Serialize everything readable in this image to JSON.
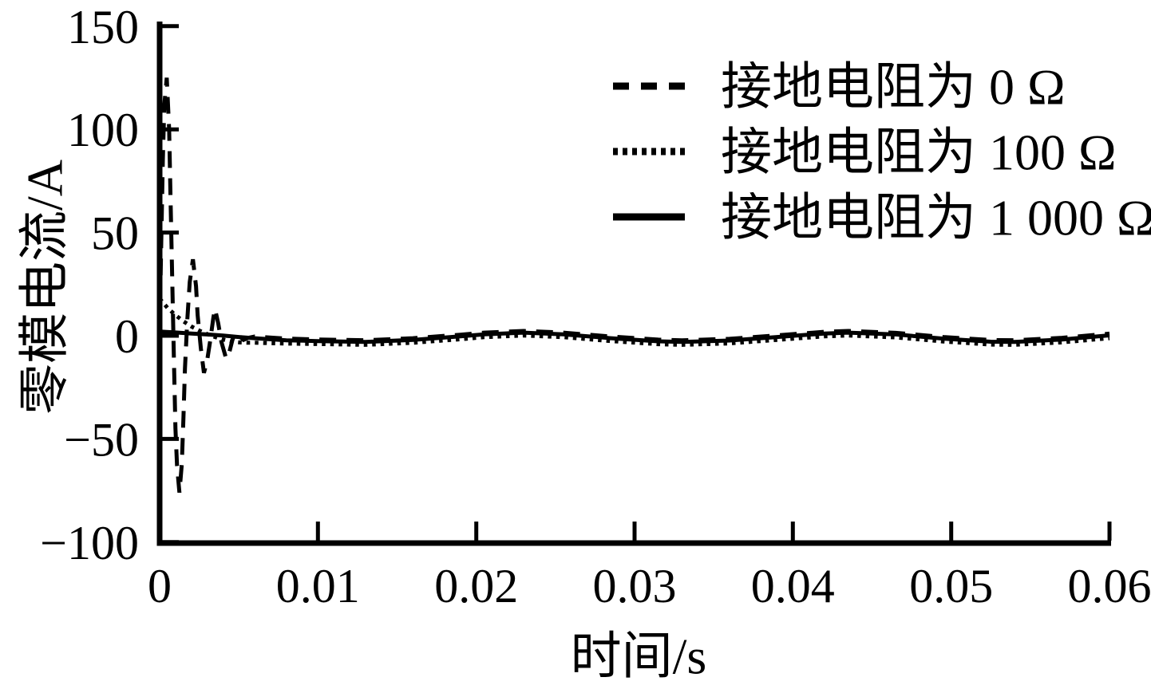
{
  "figure": {
    "background": "#ffffff",
    "ink": "#000000"
  },
  "chart_data": {
    "type": "line",
    "title": "",
    "xlabel": "时间/s",
    "ylabel": "零模电流/A",
    "xlim": [
      0,
      0.06
    ],
    "ylim": [
      -100,
      150
    ],
    "grid": false,
    "legend_position": "upper right",
    "xticks": [
      0,
      0.01,
      0.02,
      0.03,
      0.04,
      0.05,
      0.06
    ],
    "xtick_labels": [
      "0",
      "0.01",
      "0.02",
      "0.03",
      "0.04",
      "0.05",
      "0.06"
    ],
    "yticks": [
      150,
      100,
      50,
      0,
      -50,
      -100
    ],
    "ytick_labels": [
      "150",
      "100",
      "50",
      "0",
      "−50",
      "−100"
    ],
    "series": [
      {
        "name": "接地电阻为 0 Ω",
        "style": "dashed",
        "points": [
          [
            0.0,
            3
          ],
          [
            0.0001,
            45
          ],
          [
            0.0002,
            85
          ],
          [
            0.0003,
            112
          ],
          [
            0.00045,
            125
          ],
          [
            0.0006,
            100
          ],
          [
            0.0007,
            62
          ],
          [
            0.0008,
            25
          ],
          [
            0.0009,
            -10
          ],
          [
            0.001,
            -45
          ],
          [
            0.0011,
            -63
          ],
          [
            0.00125,
            -76
          ],
          [
            0.0014,
            -62
          ],
          [
            0.0015,
            -40
          ],
          [
            0.0016,
            -16
          ],
          [
            0.00175,
            8
          ],
          [
            0.0019,
            26
          ],
          [
            0.0021,
            37
          ],
          [
            0.0023,
            24
          ],
          [
            0.0024,
            10
          ],
          [
            0.0026,
            -6
          ],
          [
            0.0028,
            -18
          ],
          [
            0.003,
            -12
          ],
          [
            0.0032,
            -2
          ],
          [
            0.0034,
            9
          ],
          [
            0.0035,
            13
          ],
          [
            0.0037,
            6
          ],
          [
            0.0039,
            -3
          ],
          [
            0.0042,
            -11
          ],
          [
            0.0044,
            -8
          ],
          [
            0.0046,
            -2
          ],
          [
            0.0048,
            2
          ],
          [
            0.005,
            0
          ],
          [
            0.0053,
            -2
          ],
          [
            0.0056,
            -1
          ],
          [
            0.006,
            -0.4
          ],
          [
            0.008,
            -1.4
          ],
          [
            0.01,
            -1.8
          ],
          [
            0.013,
            -2.2
          ],
          [
            0.016,
            -1.2
          ],
          [
            0.019,
            0.5
          ],
          [
            0.0205,
            1.5
          ],
          [
            0.023,
            2.3
          ],
          [
            0.0255,
            1.5
          ],
          [
            0.0285,
            -0.4
          ],
          [
            0.0315,
            -1.9
          ],
          [
            0.033,
            -2.2
          ],
          [
            0.036,
            -1.5
          ],
          [
            0.039,
            0.2
          ],
          [
            0.042,
            1.9
          ],
          [
            0.0435,
            2.3
          ],
          [
            0.0465,
            1.4
          ],
          [
            0.0495,
            -0.6
          ],
          [
            0.0525,
            -2.1
          ],
          [
            0.054,
            -2.2
          ],
          [
            0.057,
            -1.0
          ],
          [
            0.06,
            1.0
          ]
        ]
      },
      {
        "name": "接地电阻为 100 Ω",
        "style": "dotted",
        "points": [
          [
            0.0,
            18
          ],
          [
            0.0005,
            13.5
          ],
          [
            0.001,
            10
          ],
          [
            0.0015,
            7
          ],
          [
            0.002,
            4.5
          ],
          [
            0.0025,
            2.5
          ],
          [
            0.003,
            0.8
          ],
          [
            0.0035,
            -0.6
          ],
          [
            0.004,
            -1.8
          ],
          [
            0.0045,
            -2.8
          ],
          [
            0.005,
            -3.2
          ],
          [
            0.0055,
            -3.4
          ],
          [
            0.006,
            -3.4
          ],
          [
            0.008,
            -3.8
          ],
          [
            0.01,
            -4.0
          ],
          [
            0.013,
            -4.4
          ],
          [
            0.016,
            -3.4
          ],
          [
            0.019,
            -1.7
          ],
          [
            0.0205,
            -0.7
          ],
          [
            0.023,
            0.1
          ],
          [
            0.0255,
            -0.7
          ],
          [
            0.0285,
            -2.6
          ],
          [
            0.0315,
            -4.1
          ],
          [
            0.033,
            -4.4
          ],
          [
            0.036,
            -3.7
          ],
          [
            0.039,
            -2.0
          ],
          [
            0.042,
            -0.3
          ],
          [
            0.0435,
            0.1
          ],
          [
            0.0465,
            -0.8
          ],
          [
            0.0495,
            -2.8
          ],
          [
            0.0525,
            -4.3
          ],
          [
            0.054,
            -4.4
          ],
          [
            0.057,
            -3.2
          ],
          [
            0.06,
            -1.2
          ]
        ]
      },
      {
        "name": "接地电阻为 1 000 Ω",
        "style": "solid",
        "points": [
          [
            0.0,
            2
          ],
          [
            0.001,
            1.6
          ],
          [
            0.002,
            1.1
          ],
          [
            0.003,
            0.6
          ],
          [
            0.004,
            0.1
          ],
          [
            0.005,
            -0.6
          ],
          [
            0.006,
            -1.2
          ],
          [
            0.008,
            -2.2
          ],
          [
            0.01,
            -2.6
          ],
          [
            0.013,
            -3.0
          ],
          [
            0.016,
            -2.0
          ],
          [
            0.019,
            -0.3
          ],
          [
            0.0205,
            0.7
          ],
          [
            0.023,
            1.5
          ],
          [
            0.0255,
            0.7
          ],
          [
            0.0285,
            -1.2
          ],
          [
            0.0315,
            -2.7
          ],
          [
            0.033,
            -3.0
          ],
          [
            0.036,
            -2.3
          ],
          [
            0.039,
            -0.6
          ],
          [
            0.042,
            1.1
          ],
          [
            0.0435,
            1.5
          ],
          [
            0.0465,
            0.6
          ],
          [
            0.0495,
            -1.4
          ],
          [
            0.0525,
            -2.9
          ],
          [
            0.054,
            -3.0
          ],
          [
            0.057,
            -1.8
          ],
          [
            0.06,
            0.2
          ]
        ]
      }
    ]
  }
}
